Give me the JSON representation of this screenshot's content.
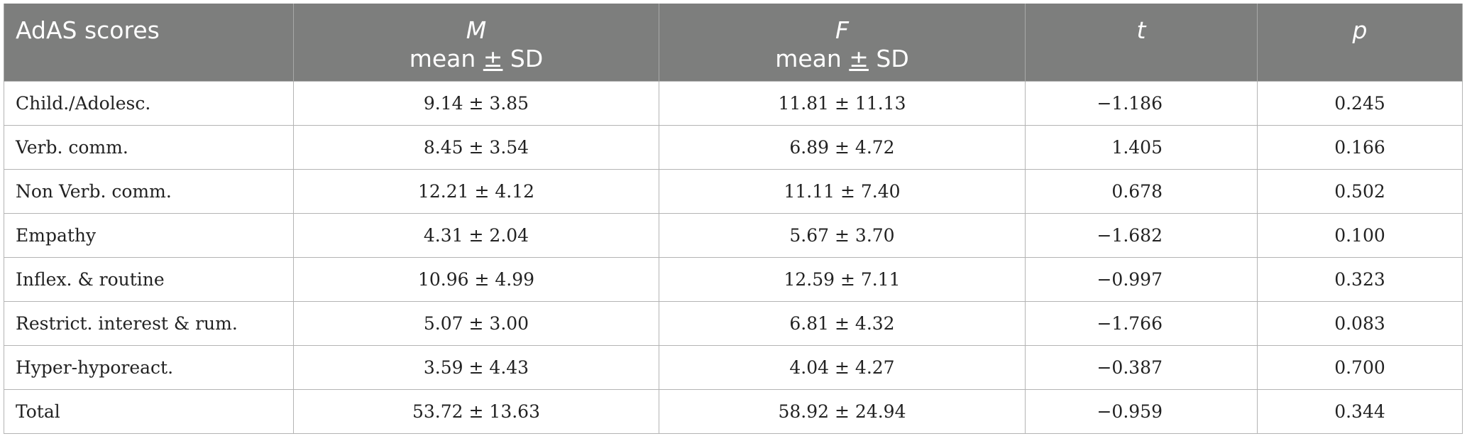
{
  "table": {
    "headers": [
      {
        "main": "AdAS scores",
        "sub": ""
      },
      {
        "main": "M",
        "sub_prefix": "mean ",
        "sub_pm": "±",
        "sub_suffix": " SD"
      },
      {
        "main": "F",
        "sub_prefix": "mean ",
        "sub_pm": "±",
        "sub_suffix": " SD"
      },
      {
        "main": "t",
        "sub": ""
      },
      {
        "main": "p",
        "sub": ""
      }
    ],
    "rows": [
      {
        "label": "Child./Adolesc.",
        "m": "9.14 ± 3.85",
        "f": "11.81 ± 11.13",
        "t": "−1.186",
        "p": "0.245"
      },
      {
        "label": "Verb. comm.",
        "m": "8.45 ± 3.54",
        "f": "6.89 ± 4.72",
        "t": "1.405",
        "p": "0.166"
      },
      {
        "label": "Non Verb. comm.",
        "m": "12.21 ± 4.12",
        "f": "11.11 ± 7.40",
        "t": "0.678",
        "p": "0.502"
      },
      {
        "label": "Empathy",
        "m": "4.31 ± 2.04",
        "f": "5.67 ± 3.70",
        "t": "−1.682",
        "p": "0.100"
      },
      {
        "label": "Inflex. & routine",
        "m": "10.96 ± 4.99",
        "f": "12.59 ± 7.11",
        "t": "−0.997",
        "p": "0.323"
      },
      {
        "label": "Restrict. interest & rum.",
        "m": "5.07 ± 3.00",
        "f": "6.81 ± 4.32",
        "t": "−1.766",
        "p": "0.083"
      },
      {
        "label": "Hyper-hyporeact.",
        "m": "3.59 ± 4.43",
        "f": "4.04 ± 4.27",
        "t": "−0.387",
        "p": "0.700"
      },
      {
        "label": "Total",
        "m": "53.72 ± 13.63",
        "f": "58.92 ± 24.94",
        "t": "−0.959",
        "p": "0.344"
      }
    ]
  },
  "colors": {
    "header_bg": "#7d7e7d",
    "header_text": "#ffffff",
    "grid": "#b4b4b4",
    "body_text": "#222222"
  }
}
